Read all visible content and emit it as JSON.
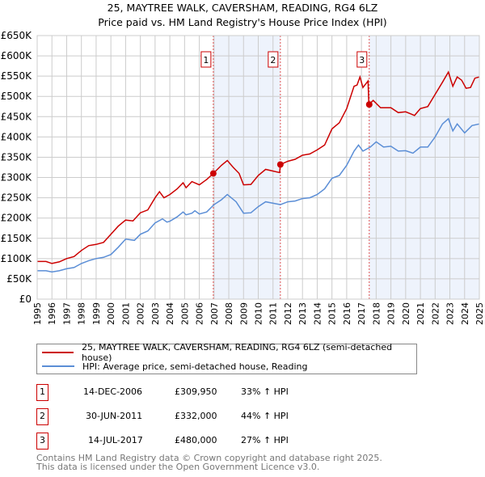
{
  "title": "25, MAYTREE WALK, CAVERSHAM, READING, RG4 6LZ",
  "subtitle": "Price paid vs. HM Land Registry's House Price Index (HPI)",
  "legend": [
    {
      "label": "25, MAYTREE WALK, CAVERSHAM, READING, RG4 6LZ (semi-detached house)",
      "color": "#cc0000"
    },
    {
      "label": "HPI: Average price, semi-detached house, Reading",
      "color": "#5b8ed6"
    }
  ],
  "sales": [
    {
      "num": "1",
      "date": "14-DEC-2006",
      "price": "£309,950",
      "hpi": "33% ↑ HPI",
      "x": 2006.95,
      "y": 309950
    },
    {
      "num": "2",
      "date": "30-JUN-2011",
      "price": "£332,000",
      "hpi": "44% ↑ HPI",
      "x": 2011.5,
      "y": 332000
    },
    {
      "num": "3",
      "date": "14-JUL-2017",
      "price": "£480,000",
      "hpi": "27% ↑ HPI",
      "x": 2017.53,
      "y": 480000
    }
  ],
  "footer": [
    "Contains HM Land Registry data © Crown copyright and database right 2025.",
    "This data is licensed under the Open Government Licence v3.0."
  ],
  "chart_data": {
    "type": "line",
    "title": "25, MAYTREE WALK, CAVERSHAM, READING, RG4 6LZ",
    "subtitle": "Price paid vs. HM Land Registry's House Price Index (HPI)",
    "xlim": [
      1995,
      2025
    ],
    "ylim": [
      0,
      650000
    ],
    "grid": true,
    "legend_position": "bottom",
    "x_ticks": [
      "1995",
      "1996",
      "1997",
      "1998",
      "1999",
      "2000",
      "2001",
      "2002",
      "2003",
      "2004",
      "2005",
      "2006",
      "2007",
      "2008",
      "2009",
      "2010",
      "2011",
      "2012",
      "2013",
      "2014",
      "2015",
      "2016",
      "2017",
      "2018",
      "2019",
      "2020",
      "2021",
      "2022",
      "2023",
      "2024",
      "2025"
    ],
    "y_ticks": [
      {
        "v": 0,
        "l": "£0"
      },
      {
        "v": 50000,
        "l": "£50K"
      },
      {
        "v": 100000,
        "l": "£100K"
      },
      {
        "v": 150000,
        "l": "£150K"
      },
      {
        "v": 200000,
        "l": "£200K"
      },
      {
        "v": 250000,
        "l": "£250K"
      },
      {
        "v": 300000,
        "l": "£300K"
      },
      {
        "v": 350000,
        "l": "£350K"
      },
      {
        "v": 400000,
        "l": "£400K"
      },
      {
        "v": 450000,
        "l": "£450K"
      },
      {
        "v": 500000,
        "l": "£500K"
      },
      {
        "v": 550000,
        "l": "£550K"
      },
      {
        "v": 600000,
        "l": "£600K"
      },
      {
        "v": 650000,
        "l": "£650K"
      }
    ],
    "series": [
      {
        "name": "25, MAYTREE WALK, CAVERSHAM, READING, RG4 6LZ (semi-detached house)",
        "color": "#cc0000",
        "points": [
          [
            1995,
            93000
          ],
          [
            1995.6,
            93000
          ],
          [
            1996,
            88000
          ],
          [
            1996.5,
            92000
          ],
          [
            1997,
            100000
          ],
          [
            1997.5,
            105000
          ],
          [
            1998,
            120000
          ],
          [
            1998.5,
            132000
          ],
          [
            1999,
            135000
          ],
          [
            1999.5,
            140000
          ],
          [
            2000,
            160000
          ],
          [
            2000.5,
            180000
          ],
          [
            2001,
            195000
          ],
          [
            2001.5,
            193000
          ],
          [
            2002,
            213000
          ],
          [
            2002.5,
            220000
          ],
          [
            2003,
            250000
          ],
          [
            2003.3,
            265000
          ],
          [
            2003.6,
            250000
          ],
          [
            2004,
            258000
          ],
          [
            2004.5,
            272000
          ],
          [
            2004.9,
            287000
          ],
          [
            2005.1,
            275000
          ],
          [
            2005.5,
            290000
          ],
          [
            2006,
            282000
          ],
          [
            2006.5,
            295000
          ],
          [
            2006.95,
            310000
          ],
          [
            2007.5,
            330000
          ],
          [
            2007.9,
            342000
          ],
          [
            2008.3,
            325000
          ],
          [
            2008.7,
            310000
          ],
          [
            2009,
            282000
          ],
          [
            2009.5,
            283000
          ],
          [
            2010,
            305000
          ],
          [
            2010.5,
            320000
          ],
          [
            2011.45,
            312000
          ],
          [
            2011.5,
            332000
          ],
          [
            2012,
            340000
          ],
          [
            2012.5,
            345000
          ],
          [
            2013,
            355000
          ],
          [
            2013.5,
            358000
          ],
          [
            2014,
            368000
          ],
          [
            2014.5,
            380000
          ],
          [
            2015,
            420000
          ],
          [
            2015.5,
            435000
          ],
          [
            2016,
            470000
          ],
          [
            2016.5,
            525000
          ],
          [
            2016.7,
            528000
          ],
          [
            2016.9,
            548000
          ],
          [
            2017.1,
            522000
          ],
          [
            2017.45,
            538000
          ],
          [
            2017.5,
            480000
          ],
          [
            2017.8,
            490000
          ],
          [
            2018.3,
            472000
          ],
          [
            2019,
            472000
          ],
          [
            2019.5,
            460000
          ],
          [
            2020,
            462000
          ],
          [
            2020.6,
            453000
          ],
          [
            2021,
            470000
          ],
          [
            2021.5,
            475000
          ],
          [
            2022,
            505000
          ],
          [
            2022.5,
            535000
          ],
          [
            2022.9,
            560000
          ],
          [
            2023.2,
            525000
          ],
          [
            2023.5,
            548000
          ],
          [
            2023.8,
            540000
          ],
          [
            2024.1,
            520000
          ],
          [
            2024.4,
            522000
          ],
          [
            2024.7,
            545000
          ],
          [
            2025,
            548000
          ]
        ]
      },
      {
        "name": "HPI: Average price, semi-detached house, Reading",
        "color": "#5b8ed6",
        "points": [
          [
            1995,
            70000
          ],
          [
            1995.6,
            70000
          ],
          [
            1996,
            67000
          ],
          [
            1996.5,
            70000
          ],
          [
            1997,
            75000
          ],
          [
            1997.5,
            78000
          ],
          [
            1998,
            88000
          ],
          [
            1998.5,
            95000
          ],
          [
            1999,
            100000
          ],
          [
            1999.5,
            103000
          ],
          [
            2000,
            110000
          ],
          [
            2000.5,
            128000
          ],
          [
            2001,
            148000
          ],
          [
            2001.6,
            145000
          ],
          [
            2002,
            160000
          ],
          [
            2002.5,
            168000
          ],
          [
            2003,
            188000
          ],
          [
            2003.5,
            198000
          ],
          [
            2003.8,
            190000
          ],
          [
            2004,
            192000
          ],
          [
            2004.5,
            203000
          ],
          [
            2004.9,
            215000
          ],
          [
            2005.1,
            208000
          ],
          [
            2005.5,
            212000
          ],
          [
            2005.7,
            218000
          ],
          [
            2006,
            210000
          ],
          [
            2006.5,
            215000
          ],
          [
            2007,
            233000
          ],
          [
            2007.5,
            245000
          ],
          [
            2007.9,
            258000
          ],
          [
            2008.5,
            240000
          ],
          [
            2009,
            212000
          ],
          [
            2009.5,
            213000
          ],
          [
            2010,
            228000
          ],
          [
            2010.5,
            240000
          ],
          [
            2011.5,
            233000
          ],
          [
            2012,
            240000
          ],
          [
            2012.5,
            242000
          ],
          [
            2013,
            248000
          ],
          [
            2013.5,
            250000
          ],
          [
            2014,
            258000
          ],
          [
            2014.5,
            272000
          ],
          [
            2015,
            298000
          ],
          [
            2015.5,
            305000
          ],
          [
            2016,
            330000
          ],
          [
            2016.5,
            365000
          ],
          [
            2016.8,
            380000
          ],
          [
            2017.1,
            365000
          ],
          [
            2017.6,
            375000
          ],
          [
            2018,
            388000
          ],
          [
            2018.5,
            375000
          ],
          [
            2019,
            377000
          ],
          [
            2019.5,
            365000
          ],
          [
            2020,
            366000
          ],
          [
            2020.5,
            360000
          ],
          [
            2021,
            375000
          ],
          [
            2021.5,
            375000
          ],
          [
            2022,
            400000
          ],
          [
            2022.5,
            432000
          ],
          [
            2022.9,
            445000
          ],
          [
            2023.2,
            415000
          ],
          [
            2023.5,
            432000
          ],
          [
            2024,
            410000
          ],
          [
            2024.5,
            428000
          ],
          [
            2025,
            432000
          ]
        ]
      }
    ]
  }
}
